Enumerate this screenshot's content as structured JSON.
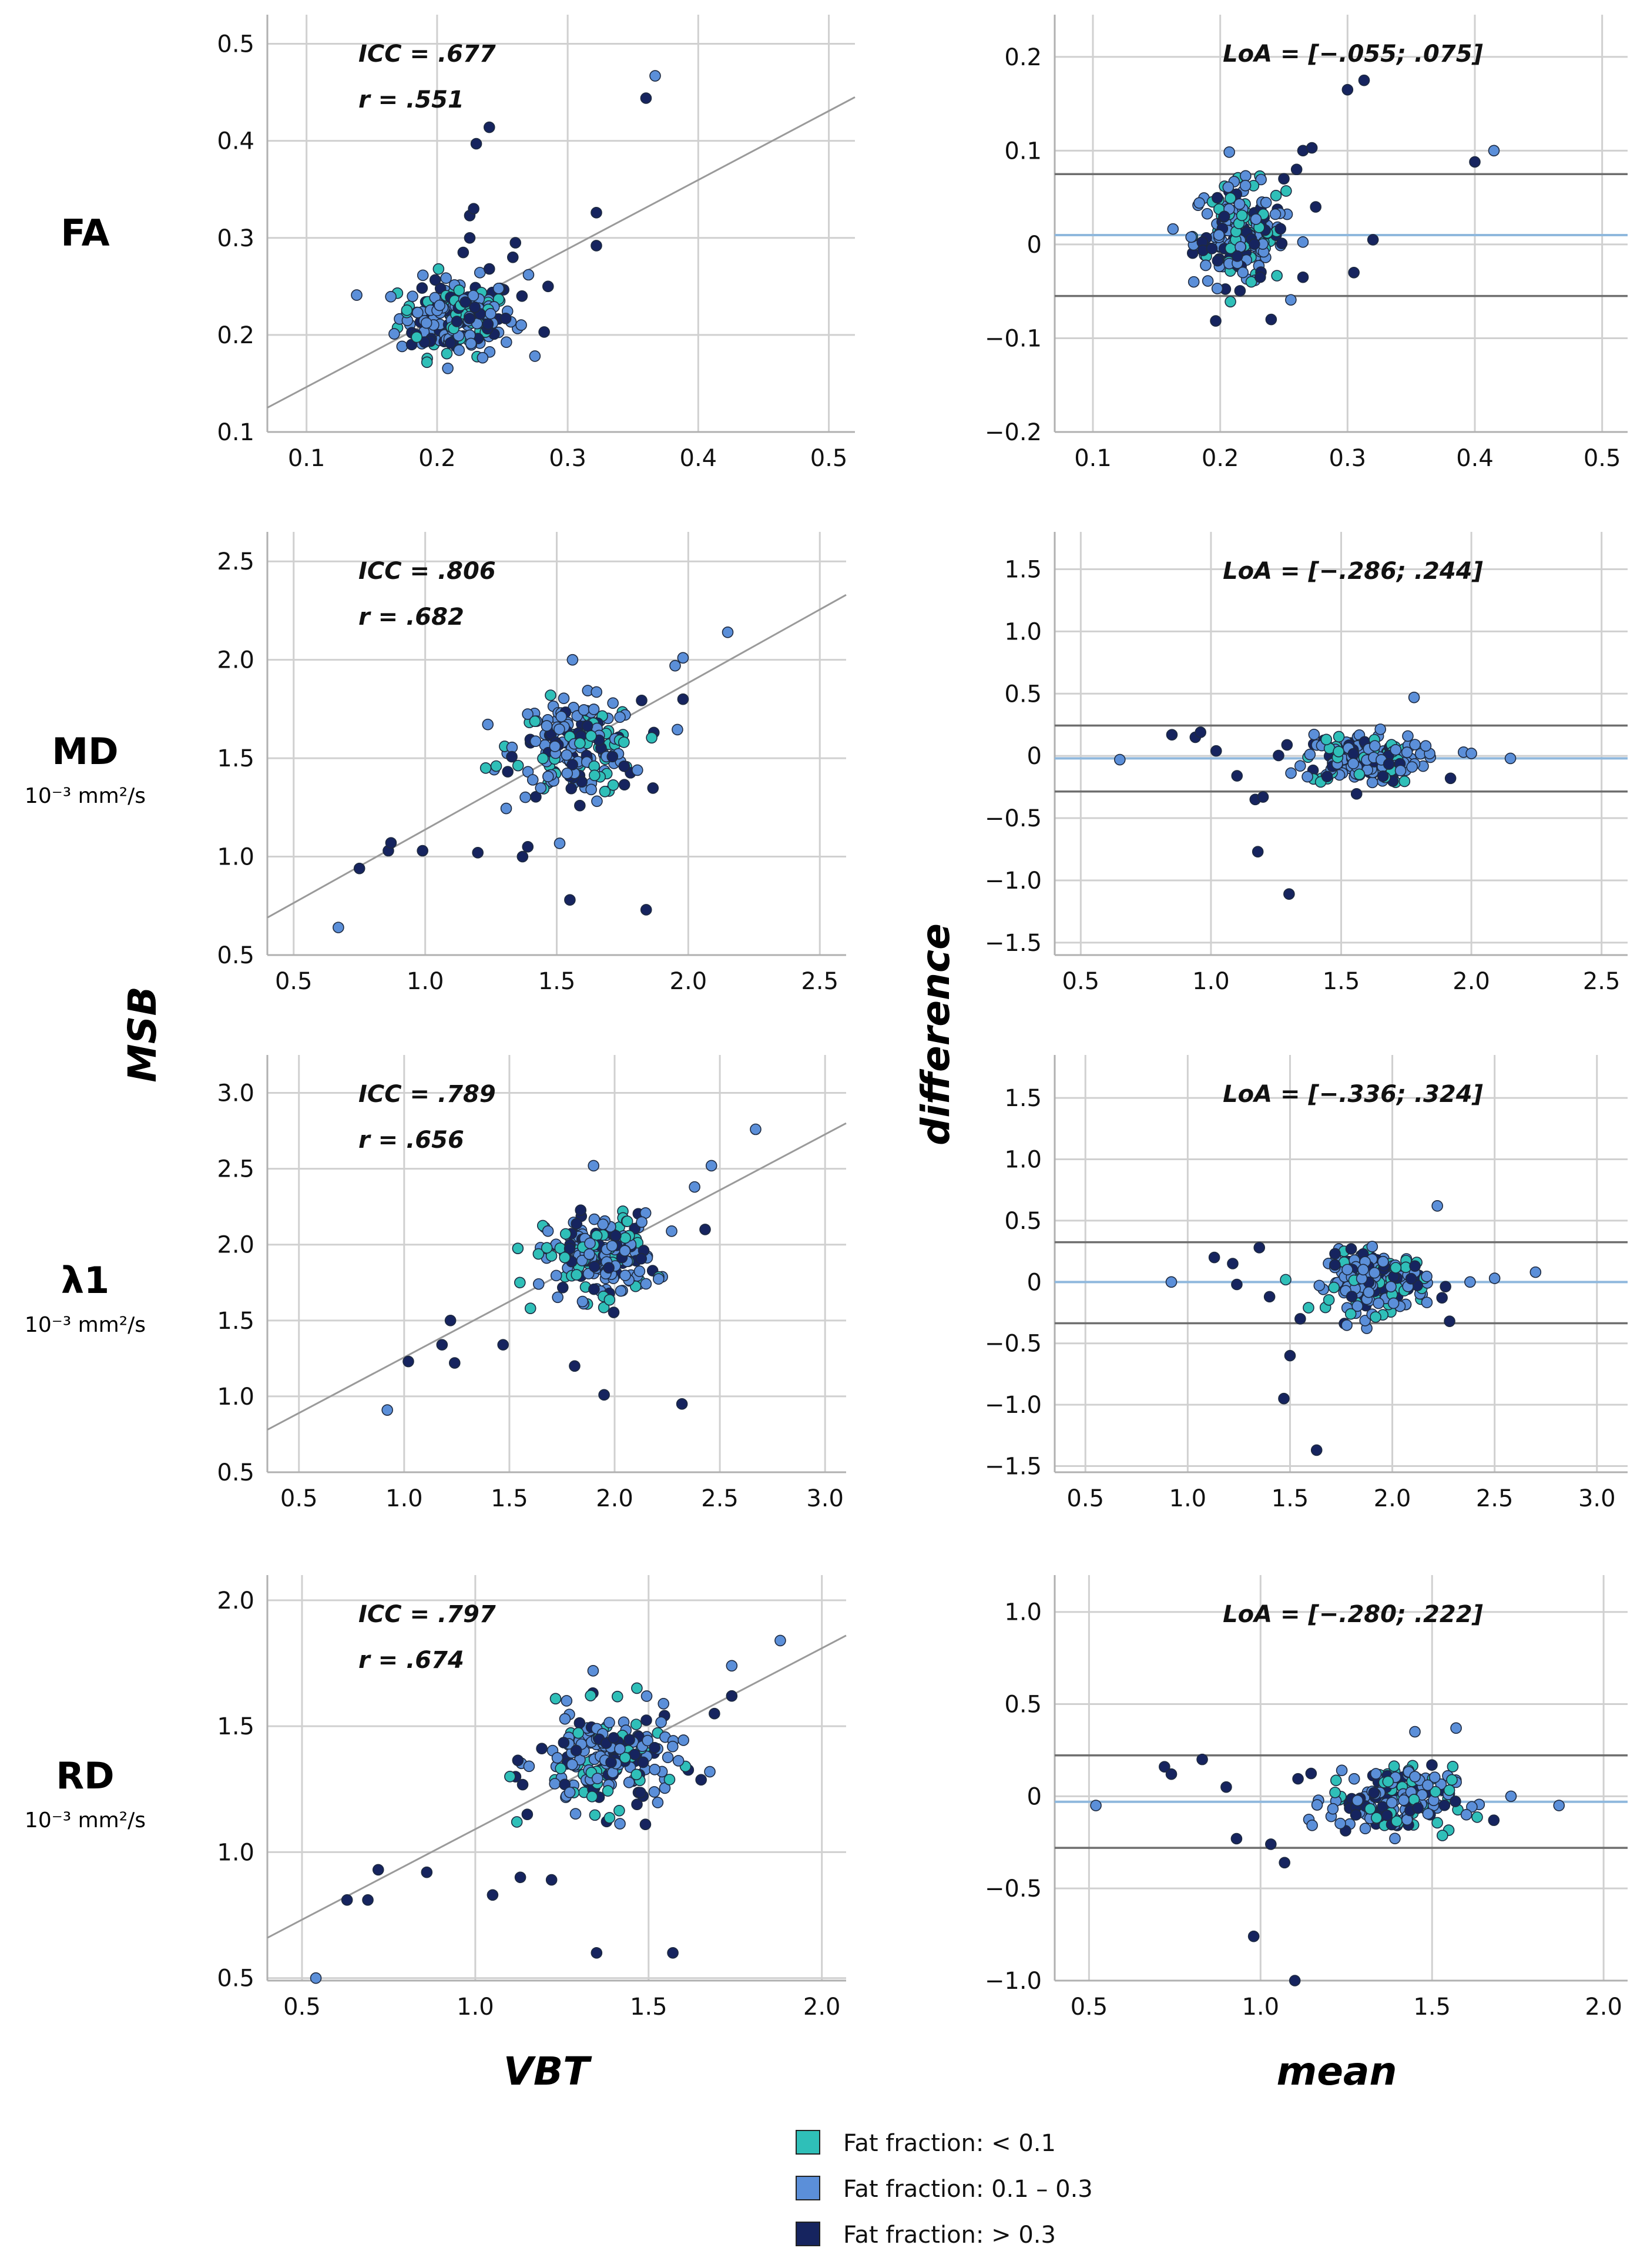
{
  "axis_titles": {
    "left_y": "MSB",
    "left_x": "VBT",
    "right_y": "difference",
    "right_x": "mean"
  },
  "rows": [
    {
      "label": "FA",
      "unit": ""
    },
    {
      "label": "MD",
      "unit": "10⁻³ mm²/s"
    },
    {
      "label": "λ1",
      "unit": "10⁻³ mm²/s"
    },
    {
      "label": "RD",
      "unit": "10⁻³ mm²/s"
    }
  ],
  "legend": [
    {
      "label": "Fat fraction: < 0.1",
      "color": "#2fbfb8"
    },
    {
      "label": "Fat fraction: 0.1 – 0.3",
      "color": "#5b8fd9"
    },
    {
      "label": "Fat fraction: > 0.3",
      "color": "#16245f"
    }
  ],
  "colors": {
    "low": "#2fbfb8",
    "mid": "#5b8fd9",
    "high": "#16245f",
    "grid": "#d0d0d0",
    "regression": "#9a9a9a",
    "loa": "#6e6e6e",
    "bias": "#8fb8dd"
  },
  "chart_data": [
    {
      "type": "scatter",
      "id": "fa-scatter",
      "xlabel": "VBT",
      "ylabel": "MSB",
      "xlim": [
        0.07,
        0.52
      ],
      "ylim": [
        0.1,
        0.53
      ],
      "xticks": [
        "0.1",
        "0.2",
        "0.3",
        "0.4",
        "0.5"
      ],
      "yticks": [
        "0.1",
        "0.2",
        "0.3",
        "0.4",
        "0.5"
      ],
      "annotations": [
        "ICC = .677",
        "r = .551"
      ],
      "regression": [
        [
          0.07,
          0.125
        ],
        [
          0.52,
          0.445
        ]
      ],
      "cluster": {
        "cx": 0.215,
        "cy": 0.218,
        "sx": 0.022,
        "sy": 0.02,
        "n": 200
      },
      "points": [
        [
          0.23,
          0.397,
          "high"
        ],
        [
          0.24,
          0.414,
          "high"
        ],
        [
          0.36,
          0.444,
          "high"
        ],
        [
          0.367,
          0.467,
          "mid"
        ],
        [
          0.225,
          0.323,
          "high"
        ],
        [
          0.228,
          0.33,
          "high"
        ],
        [
          0.225,
          0.3,
          "high"
        ],
        [
          0.22,
          0.285,
          "high"
        ],
        [
          0.322,
          0.326,
          "high"
        ],
        [
          0.322,
          0.292,
          "high"
        ],
        [
          0.285,
          0.25,
          "high"
        ],
        [
          0.282,
          0.203,
          "high"
        ],
        [
          0.26,
          0.295,
          "high"
        ],
        [
          0.258,
          0.28,
          "high"
        ],
        [
          0.265,
          0.24,
          "high"
        ],
        [
          0.27,
          0.262,
          "mid"
        ],
        [
          0.24,
          0.268,
          "high"
        ]
      ]
    },
    {
      "type": "scatter",
      "id": "fa-ba",
      "xlabel": "mean",
      "ylabel": "difference",
      "xlim": [
        0.07,
        0.52
      ],
      "ylim": [
        -0.2,
        0.245
      ],
      "xticks": [
        "0.1",
        "0.2",
        "0.3",
        "0.4",
        "0.5"
      ],
      "yticks": [
        "−0.2",
        "−0.1",
        "0",
        "0.1",
        "0.2"
      ],
      "annotations": [
        "LoA = [−.055; .075]"
      ],
      "loa": [
        -0.055,
        0.075
      ],
      "bias": 0.01,
      "cluster": {
        "cx": 0.215,
        "cy": 0.01,
        "sx": 0.018,
        "sy": 0.027,
        "n": 200
      },
      "points": [
        [
          0.3,
          0.165,
          "high"
        ],
        [
          0.313,
          0.175,
          "high"
        ],
        [
          0.265,
          0.1,
          "high"
        ],
        [
          0.272,
          0.103,
          "high"
        ],
        [
          0.25,
          0.07,
          "high"
        ],
        [
          0.26,
          0.08,
          "high"
        ],
        [
          0.4,
          0.088,
          "high"
        ],
        [
          0.415,
          0.1,
          "mid"
        ],
        [
          0.32,
          0.005,
          "high"
        ],
        [
          0.305,
          -0.03,
          "high"
        ],
        [
          0.24,
          -0.08,
          "high"
        ],
        [
          0.265,
          -0.035,
          "high"
        ],
        [
          0.275,
          0.04,
          "high"
        ]
      ]
    },
    {
      "type": "scatter",
      "id": "md-scatter",
      "xlabel": "VBT",
      "ylabel": "MSB",
      "xlim": [
        0.4,
        2.6
      ],
      "ylim": [
        0.5,
        2.65
      ],
      "xticks": [
        "0.5",
        "1.0",
        "1.5",
        "2.0",
        "2.5"
      ],
      "yticks": [
        "0.5",
        "1.0",
        "1.5",
        "2.0",
        "2.5"
      ],
      "annotations": [
        "ICC = .806",
        "r = .682"
      ],
      "regression": [
        [
          0.4,
          0.69
        ],
        [
          2.6,
          2.33
        ]
      ],
      "cluster": {
        "cx": 1.58,
        "cy": 1.55,
        "sx": 0.12,
        "sy": 0.12,
        "n": 200
      },
      "points": [
        [
          0.67,
          0.64,
          "mid"
        ],
        [
          0.75,
          0.94,
          "high"
        ],
        [
          0.86,
          1.03,
          "high"
        ],
        [
          0.87,
          1.07,
          "high"
        ],
        [
          0.99,
          1.03,
          "high"
        ],
        [
          1.2,
          1.02,
          "high"
        ],
        [
          1.37,
          1.0,
          "high"
        ],
        [
          1.39,
          1.05,
          "high"
        ],
        [
          1.55,
          0.78,
          "high"
        ],
        [
          1.84,
          0.73,
          "high"
        ],
        [
          1.98,
          2.01,
          "mid"
        ],
        [
          1.95,
          1.97,
          "mid"
        ],
        [
          2.15,
          2.14,
          "mid"
        ],
        [
          1.98,
          1.8,
          "high"
        ],
        [
          1.56,
          2.0,
          "mid"
        ],
        [
          1.27,
          1.46,
          "low"
        ],
        [
          1.23,
          1.45,
          "low"
        ]
      ]
    },
    {
      "type": "scatter",
      "id": "md-ba",
      "xlabel": "mean",
      "ylabel": "difference",
      "xlim": [
        0.4,
        2.6
      ],
      "ylim": [
        -1.6,
        1.8
      ],
      "xticks": [
        "0.5",
        "1.0",
        "1.5",
        "2.0",
        "2.5"
      ],
      "yticks": [
        "−1.5",
        "−1.0",
        "−0.5",
        "0",
        "0.5",
        "1.0",
        "1.5"
      ],
      "annotations": [
        "LoA = [−.286; .244]"
      ],
      "loa": [
        -0.286,
        0.244
      ],
      "bias": -0.02,
      "cluster": {
        "cx": 1.58,
        "cy": -0.02,
        "sx": 0.11,
        "sy": 0.1,
        "n": 200
      },
      "points": [
        [
          0.65,
          -0.03,
          "mid"
        ],
        [
          0.85,
          0.17,
          "high"
        ],
        [
          0.94,
          0.15,
          "high"
        ],
        [
          0.96,
          0.19,
          "high"
        ],
        [
          1.02,
          0.04,
          "high"
        ],
        [
          1.1,
          -0.16,
          "high"
        ],
        [
          1.17,
          -0.35,
          "high"
        ],
        [
          1.2,
          -0.33,
          "high"
        ],
        [
          1.18,
          -0.77,
          "high"
        ],
        [
          1.3,
          -1.11,
          "high"
        ],
        [
          1.78,
          0.47,
          "mid"
        ],
        [
          1.97,
          0.03,
          "mid"
        ],
        [
          2.0,
          0.02,
          "mid"
        ],
        [
          2.15,
          -0.02,
          "mid"
        ],
        [
          1.92,
          -0.18,
          "high"
        ]
      ]
    },
    {
      "type": "scatter",
      "id": "l1-scatter",
      "xlabel": "VBT",
      "ylabel": "MSB",
      "xlim": [
        0.35,
        3.1
      ],
      "ylim": [
        0.5,
        3.25
      ],
      "xticks": [
        "0.5",
        "1.0",
        "1.5",
        "2.0",
        "2.5",
        "3.0"
      ],
      "yticks": [
        "0.5",
        "1.0",
        "1.5",
        "2.0",
        "2.5",
        "3.0"
      ],
      "annotations": [
        "ICC = .789",
        "r = .656"
      ],
      "regression": [
        [
          0.35,
          0.78
        ],
        [
          3.1,
          2.8
        ]
      ],
      "cluster": {
        "cx": 1.93,
        "cy": 1.92,
        "sx": 0.13,
        "sy": 0.14,
        "n": 200
      },
      "points": [
        [
          0.92,
          0.91,
          "mid"
        ],
        [
          1.02,
          1.23,
          "high"
        ],
        [
          1.18,
          1.34,
          "high"
        ],
        [
          1.22,
          1.5,
          "high"
        ],
        [
          1.24,
          1.22,
          "high"
        ],
        [
          1.47,
          1.34,
          "high"
        ],
        [
          1.81,
          1.2,
          "high"
        ],
        [
          1.95,
          1.01,
          "high"
        ],
        [
          2.32,
          0.95,
          "high"
        ],
        [
          2.46,
          2.52,
          "mid"
        ],
        [
          2.67,
          2.76,
          "mid"
        ],
        [
          1.9,
          2.52,
          "mid"
        ],
        [
          2.38,
          2.38,
          "mid"
        ],
        [
          2.43,
          2.1,
          "high"
        ],
        [
          1.55,
          1.75,
          "low"
        ],
        [
          1.6,
          1.58,
          "low"
        ]
      ]
    },
    {
      "type": "scatter",
      "id": "l1-ba",
      "xlabel": "mean",
      "ylabel": "difference",
      "xlim": [
        0.35,
        3.15
      ],
      "ylim": [
        -1.55,
        1.85
      ],
      "xticks": [
        "0.5",
        "1.0",
        "1.5",
        "2.0",
        "2.5",
        "3.0"
      ],
      "yticks": [
        "−1.5",
        "−1.0",
        "−0.5",
        "0",
        "0.5",
        "1.0",
        "1.5"
      ],
      "annotations": [
        "LoA = [−.336; .324]"
      ],
      "loa": [
        -0.336,
        0.324
      ],
      "bias": 0.0,
      "cluster": {
        "cx": 1.93,
        "cy": 0.0,
        "sx": 0.12,
        "sy": 0.12,
        "n": 200
      },
      "points": [
        [
          0.92,
          0.0,
          "mid"
        ],
        [
          1.13,
          0.2,
          "high"
        ],
        [
          1.22,
          0.15,
          "high"
        ],
        [
          1.24,
          -0.02,
          "high"
        ],
        [
          1.35,
          0.28,
          "high"
        ],
        [
          1.4,
          -0.12,
          "high"
        ],
        [
          1.47,
          -0.95,
          "high"
        ],
        [
          1.5,
          -0.6,
          "high"
        ],
        [
          1.55,
          -0.3,
          "high"
        ],
        [
          1.63,
          -1.37,
          "high"
        ],
        [
          1.72,
          0.23,
          "high"
        ],
        [
          2.22,
          0.62,
          "mid"
        ],
        [
          2.5,
          0.03,
          "mid"
        ],
        [
          2.7,
          0.08,
          "mid"
        ],
        [
          2.28,
          -0.32,
          "high"
        ],
        [
          2.38,
          0.0,
          "mid"
        ]
      ]
    },
    {
      "type": "scatter",
      "id": "rd-scatter",
      "xlabel": "VBT",
      "ylabel": "MSB",
      "xlim": [
        0.4,
        2.07
      ],
      "ylim": [
        0.49,
        2.1
      ],
      "xticks": [
        "0.5",
        "1.0",
        "1.5",
        "2.0"
      ],
      "yticks": [
        "0.5",
        "1.0",
        "1.5",
        "2.0"
      ],
      "annotations": [
        "ICC = .797",
        "r = .674"
      ],
      "regression": [
        [
          0.4,
          0.66
        ],
        [
          2.07,
          1.86
        ]
      ],
      "cluster": {
        "cx": 1.38,
        "cy": 1.36,
        "sx": 0.1,
        "sy": 0.1,
        "n": 200
      },
      "points": [
        [
          0.54,
          0.5,
          "mid"
        ],
        [
          0.63,
          0.81,
          "high"
        ],
        [
          0.69,
          0.81,
          "high"
        ],
        [
          0.72,
          0.93,
          "high"
        ],
        [
          0.86,
          0.92,
          "high"
        ],
        [
          1.05,
          0.83,
          "high"
        ],
        [
          1.13,
          0.9,
          "high"
        ],
        [
          1.22,
          0.89,
          "high"
        ],
        [
          1.35,
          0.6,
          "high"
        ],
        [
          1.57,
          0.6,
          "high"
        ],
        [
          1.88,
          1.84,
          "mid"
        ],
        [
          1.74,
          1.74,
          "mid"
        ],
        [
          1.74,
          1.62,
          "high"
        ],
        [
          1.69,
          1.55,
          "high"
        ],
        [
          1.34,
          1.72,
          "mid"
        ],
        [
          1.1,
          1.3,
          "low"
        ],
        [
          1.12,
          1.12,
          "low"
        ],
        [
          1.15,
          1.15,
          "high"
        ]
      ]
    },
    {
      "type": "scatter",
      "id": "rd-ba",
      "xlabel": "mean",
      "ylabel": "difference",
      "xlim": [
        0.4,
        2.07
      ],
      "ylim": [
        -1.0,
        1.2
      ],
      "xticks": [
        "0.5",
        "1.0",
        "1.5",
        "2.0"
      ],
      "yticks": [
        "−1.0",
        "−0.5",
        "0",
        "0.5",
        "1.0"
      ],
      "annotations": [
        "LoA = [−.280; .222]"
      ],
      "loa": [
        -0.28,
        0.222
      ],
      "bias": -0.03,
      "cluster": {
        "cx": 1.38,
        "cy": -0.02,
        "sx": 0.09,
        "sy": 0.09,
        "n": 200
      },
      "points": [
        [
          0.52,
          -0.05,
          "mid"
        ],
        [
          0.72,
          0.16,
          "high"
        ],
        [
          0.74,
          0.12,
          "high"
        ],
        [
          0.83,
          0.2,
          "high"
        ],
        [
          0.9,
          0.05,
          "high"
        ],
        [
          0.93,
          -0.23,
          "high"
        ],
        [
          1.03,
          -0.26,
          "high"
        ],
        [
          1.07,
          -0.36,
          "high"
        ],
        [
          0.98,
          -0.76,
          "high"
        ],
        [
          1.1,
          -1.0,
          "high"
        ],
        [
          1.57,
          0.37,
          "mid"
        ],
        [
          1.45,
          0.35,
          "mid"
        ],
        [
          1.73,
          0.0,
          "mid"
        ],
        [
          1.87,
          -0.05,
          "mid"
        ],
        [
          1.68,
          -0.13,
          "high"
        ],
        [
          1.6,
          -0.1,
          "mid"
        ]
      ]
    }
  ]
}
